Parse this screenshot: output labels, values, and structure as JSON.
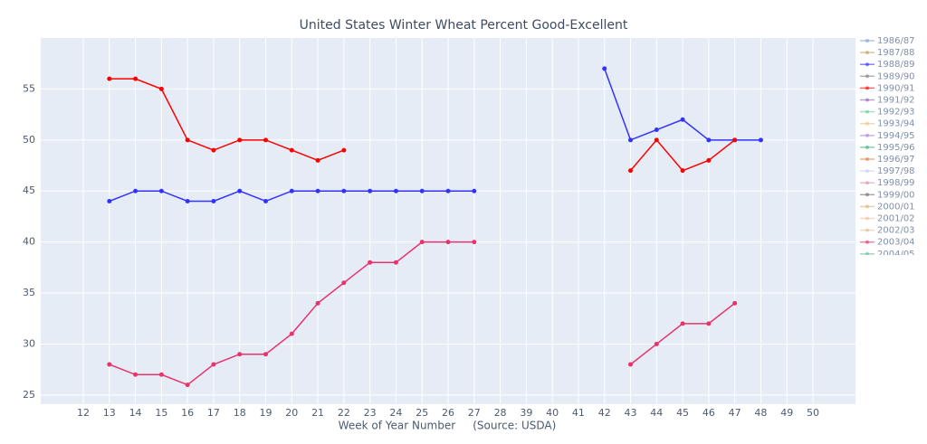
{
  "chart_data": {
    "type": "line",
    "title": "United States Winter Wheat Percent Good-Excellent",
    "x_label": "Week of Year Number     (Source: USDA)",
    "categories": [
      12,
      13,
      14,
      15,
      16,
      17,
      18,
      19,
      20,
      21,
      22,
      23,
      24,
      25,
      26,
      27,
      28,
      39,
      40,
      41,
      42,
      43,
      44,
      45,
      46,
      47,
      48,
      49,
      50
    ],
    "ylim": [
      24.1,
      60
    ],
    "yticks": [
      25,
      30,
      35,
      40,
      45,
      50,
      55
    ],
    "grid": true,
    "legend": "right",
    "series": [
      {
        "name": "1986/87",
        "color": "#7f9fd0",
        "values": [
          null,
          null,
          null,
          null,
          null,
          null,
          null,
          null,
          null,
          null,
          null,
          null,
          null,
          null,
          null,
          null,
          null,
          null,
          null,
          null,
          null,
          null,
          null,
          null,
          null,
          null,
          null,
          null,
          null
        ]
      },
      {
        "name": "1987/88",
        "color": "#c0a060",
        "values": [
          null,
          null,
          null,
          null,
          null,
          null,
          null,
          null,
          null,
          null,
          null,
          null,
          null,
          null,
          null,
          null,
          null,
          null,
          null,
          null,
          null,
          null,
          null,
          null,
          null,
          null,
          null,
          null,
          null
        ]
      },
      {
        "name": "1988/89",
        "color": "#3333ff",
        "values": [
          null,
          44,
          45,
          45,
          44,
          44,
          45,
          44,
          45,
          45,
          45,
          45,
          45,
          45,
          45,
          45,
          null,
          null,
          null,
          null,
          57,
          50,
          51,
          52,
          50,
          50,
          50,
          null,
          null
        ]
      },
      {
        "name": "1989/90",
        "color": "#7f7f7f",
        "values": [
          null,
          null,
          null,
          null,
          null,
          null,
          null,
          null,
          null,
          null,
          null,
          null,
          null,
          null,
          null,
          null,
          null,
          null,
          null,
          null,
          null,
          null,
          null,
          null,
          null,
          null,
          null,
          null,
          null
        ]
      },
      {
        "name": "1990/91",
        "color": "#ff0000",
        "values": [
          null,
          56,
          56,
          55,
          50,
          49,
          50,
          50,
          49,
          48,
          49,
          null,
          null,
          null,
          null,
          null,
          null,
          null,
          null,
          null,
          null,
          47,
          50,
          47,
          48,
          50,
          null,
          null,
          null
        ]
      },
      {
        "name": "1991/92",
        "color": "#8c6bb1",
        "values": [
          null,
          null,
          null,
          null,
          null,
          null,
          null,
          null,
          null,
          null,
          null,
          null,
          null,
          null,
          null,
          null,
          null,
          null,
          null,
          null,
          null,
          null,
          null,
          null,
          null,
          null,
          null,
          null,
          null
        ]
      },
      {
        "name": "1992/93",
        "color": "#66cc99",
        "values": [
          null,
          null,
          null,
          null,
          null,
          null,
          null,
          null,
          null,
          null,
          null,
          null,
          null,
          null,
          null,
          null,
          null,
          null,
          null,
          null,
          null,
          null,
          null,
          null,
          null,
          null,
          null,
          null,
          null
        ]
      },
      {
        "name": "1993/94",
        "color": "#f0c080",
        "values": [
          null,
          null,
          null,
          null,
          null,
          null,
          null,
          null,
          null,
          null,
          null,
          null,
          null,
          null,
          null,
          null,
          null,
          null,
          null,
          null,
          null,
          null,
          null,
          null,
          null,
          null,
          null,
          null,
          null
        ]
      },
      {
        "name": "1994/95",
        "color": "#b080e0",
        "values": [
          null,
          null,
          null,
          null,
          null,
          null,
          null,
          null,
          null,
          null,
          null,
          null,
          null,
          null,
          null,
          null,
          null,
          null,
          null,
          null,
          null,
          null,
          null,
          null,
          null,
          null,
          null,
          null,
          null
        ]
      },
      {
        "name": "1995/96",
        "color": "#40b080",
        "values": [
          null,
          null,
          null,
          null,
          null,
          null,
          null,
          null,
          null,
          null,
          null,
          null,
          null,
          null,
          null,
          null,
          null,
          null,
          null,
          null,
          null,
          null,
          null,
          null,
          null,
          null,
          null,
          null,
          null
        ]
      },
      {
        "name": "1996/97",
        "color": "#e08040",
        "values": [
          null,
          null,
          null,
          null,
          null,
          null,
          null,
          null,
          null,
          null,
          null,
          null,
          null,
          null,
          null,
          null,
          null,
          null,
          null,
          null,
          null,
          null,
          null,
          null,
          null,
          null,
          null,
          null,
          null
        ]
      },
      {
        "name": "1997/98",
        "color": "#c0d0f0",
        "values": [
          null,
          null,
          null,
          null,
          null,
          null,
          null,
          null,
          null,
          null,
          null,
          null,
          null,
          null,
          null,
          null,
          null,
          null,
          null,
          null,
          null,
          null,
          null,
          null,
          null,
          null,
          null,
          null,
          null
        ]
      },
      {
        "name": "1998/99",
        "color": "#e090b0",
        "values": [
          null,
          null,
          null,
          null,
          null,
          null,
          null,
          null,
          null,
          null,
          null,
          null,
          null,
          null,
          null,
          null,
          null,
          null,
          null,
          null,
          null,
          null,
          null,
          null,
          null,
          null,
          null,
          null,
          null
        ]
      },
      {
        "name": "1999/00",
        "color": "#707070",
        "values": [
          null,
          null,
          null,
          null,
          null,
          null,
          null,
          null,
          null,
          null,
          null,
          null,
          null,
          null,
          null,
          null,
          null,
          null,
          null,
          null,
          null,
          null,
          null,
          null,
          null,
          null,
          null,
          null,
          null
        ]
      },
      {
        "name": "2000/01",
        "color": "#e0b070",
        "values": [
          null,
          null,
          null,
          null,
          null,
          null,
          null,
          null,
          null,
          null,
          null,
          null,
          null,
          null,
          null,
          null,
          null,
          null,
          null,
          null,
          null,
          null,
          null,
          null,
          null,
          null,
          null,
          null,
          null
        ]
      },
      {
        "name": "2001/02",
        "color": "#f0c0a0",
        "values": [
          null,
          null,
          null,
          null,
          null,
          null,
          null,
          null,
          null,
          null,
          null,
          null,
          null,
          null,
          null,
          null,
          null,
          null,
          null,
          null,
          null,
          null,
          null,
          null,
          null,
          null,
          null,
          null,
          null
        ]
      },
      {
        "name": "2002/03",
        "color": "#e0c090",
        "values": [
          null,
          null,
          null,
          null,
          null,
          null,
          null,
          null,
          null,
          null,
          null,
          null,
          null,
          null,
          null,
          null,
          null,
          null,
          null,
          null,
          null,
          null,
          null,
          null,
          null,
          null,
          null,
          null,
          null
        ]
      },
      {
        "name": "2003/04",
        "color": "#e8336d",
        "values": [
          null,
          28,
          27,
          27,
          26,
          28,
          29,
          29,
          31,
          34,
          36,
          38,
          38,
          40,
          40,
          40,
          null,
          null,
          null,
          null,
          null,
          28,
          30,
          32,
          32,
          34,
          null,
          null,
          null
        ]
      },
      {
        "name": "2004/05",
        "color": "#60c0a0",
        "values": [
          null,
          null,
          null,
          null,
          null,
          null,
          null,
          null,
          null,
          null,
          null,
          null,
          null,
          null,
          null,
          null,
          null,
          null,
          null,
          null,
          null,
          null,
          null,
          null,
          null,
          null,
          null,
          null,
          null
        ]
      }
    ]
  }
}
